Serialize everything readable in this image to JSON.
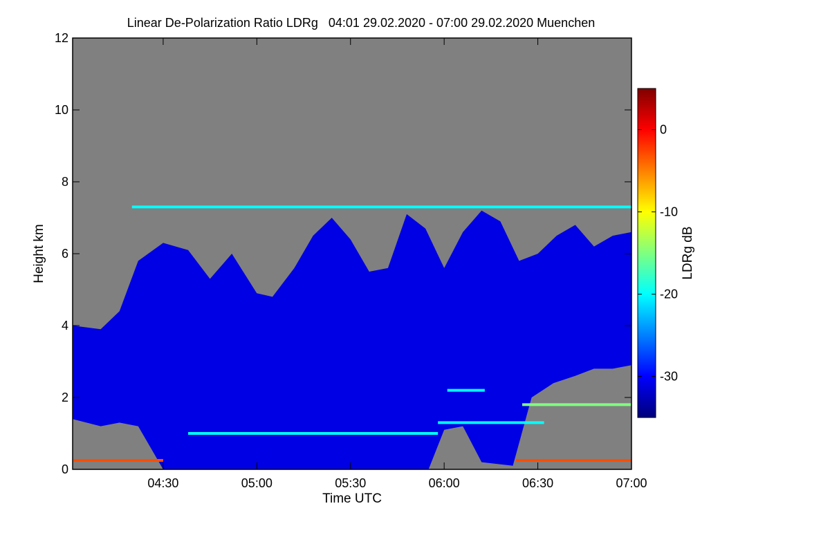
{
  "chart_data": {
    "type": "heatmap",
    "title": "Linear De-Polarization Ratio LDRg   04:01 29.02.2020 - 07:00 29.02.2020 Muenchen",
    "xlabel": "Time UTC",
    "ylabel": "Height km",
    "x_range": [
      "04:01",
      "07:00"
    ],
    "xlim_minutes_utc": [
      241,
      420
    ],
    "ylim": [
      0,
      12
    ],
    "x_ticks": [
      {
        "label": "04:30",
        "value": 270
      },
      {
        "label": "05:00",
        "value": 300
      },
      {
        "label": "05:30",
        "value": 330
      },
      {
        "label": "06:00",
        "value": 360
      },
      {
        "label": "06:30",
        "value": 390
      },
      {
        "label": "07:00",
        "value": 420
      }
    ],
    "y_ticks": [
      {
        "label": "0",
        "value": 0
      },
      {
        "label": "2",
        "value": 2
      },
      {
        "label": "4",
        "value": 4
      },
      {
        "label": "6",
        "value": 6
      },
      {
        "label": "8",
        "value": 8
      },
      {
        "label": "10",
        "value": 10
      },
      {
        "label": "12",
        "value": 12
      }
    ],
    "colorbar": {
      "label": "LDRg dB",
      "range": [
        -35,
        5
      ],
      "ticks": [
        {
          "label": "0",
          "value": 0
        },
        {
          "label": "-10",
          "value": -10
        },
        {
          "label": "-20",
          "value": -20
        },
        {
          "label": "-30",
          "value": -30
        }
      ],
      "colors": [
        "#00007a",
        "#0000ff",
        "#0080ff",
        "#00ffff",
        "#80ff80",
        "#ffff00",
        "#ff8000",
        "#ff0000",
        "#800000"
      ]
    },
    "no_data_color": "#808080",
    "cloud_top_km": [
      [
        241,
        4.0
      ],
      [
        250,
        3.9
      ],
      [
        256,
        4.4
      ],
      [
        262,
        5.8
      ],
      [
        270,
        6.3
      ],
      [
        278,
        6.1
      ],
      [
        285,
        5.3
      ],
      [
        292,
        6.0
      ],
      [
        300,
        4.9
      ],
      [
        305,
        4.8
      ],
      [
        312,
        5.6
      ],
      [
        318,
        6.5
      ],
      [
        324,
        7.0
      ],
      [
        330,
        6.4
      ],
      [
        336,
        5.5
      ],
      [
        342,
        5.6
      ],
      [
        348,
        7.1
      ],
      [
        354,
        6.7
      ],
      [
        360,
        5.6
      ],
      [
        366,
        6.6
      ],
      [
        372,
        7.2
      ],
      [
        378,
        6.9
      ],
      [
        384,
        5.8
      ],
      [
        390,
        6.0
      ],
      [
        396,
        6.5
      ],
      [
        402,
        6.8
      ],
      [
        408,
        6.2
      ],
      [
        414,
        6.5
      ],
      [
        420,
        6.6
      ]
    ],
    "cloud_base_km": [
      [
        241,
        1.4
      ],
      [
        250,
        1.2
      ],
      [
        256,
        1.3
      ],
      [
        262,
        1.2
      ],
      [
        270,
        0.0
      ],
      [
        300,
        0.0
      ],
      [
        330,
        0.0
      ],
      [
        355,
        0.0
      ],
      [
        360,
        1.1
      ],
      [
        366,
        1.2
      ],
      [
        372,
        0.2
      ],
      [
        382,
        0.1
      ],
      [
        388,
        2.0
      ],
      [
        395,
        2.4
      ],
      [
        402,
        2.6
      ],
      [
        408,
        2.8
      ],
      [
        414,
        2.8
      ],
      [
        420,
        2.9
      ]
    ],
    "enhanced_layers": [
      {
        "height_km": 7.3,
        "ldr_db": -20,
        "x_start": 260,
        "x_end": 420
      },
      {
        "height_km": 1.0,
        "ldr_db": -20,
        "x_start": 278,
        "x_end": 358
      },
      {
        "height_km": 1.3,
        "ldr_db": -20,
        "x_start": 358,
        "x_end": 392
      },
      {
        "height_km": 0.25,
        "ldr_db": -3,
        "x_start": 241,
        "x_end": 270
      },
      {
        "height_km": 0.25,
        "ldr_db": -3,
        "x_start": 383,
        "x_end": 420
      },
      {
        "height_km": 2.2,
        "ldr_db": -20,
        "x_start": 361,
        "x_end": 373
      },
      {
        "height_km": 1.8,
        "ldr_db": -15,
        "x_start": 385,
        "x_end": 420
      }
    ]
  }
}
